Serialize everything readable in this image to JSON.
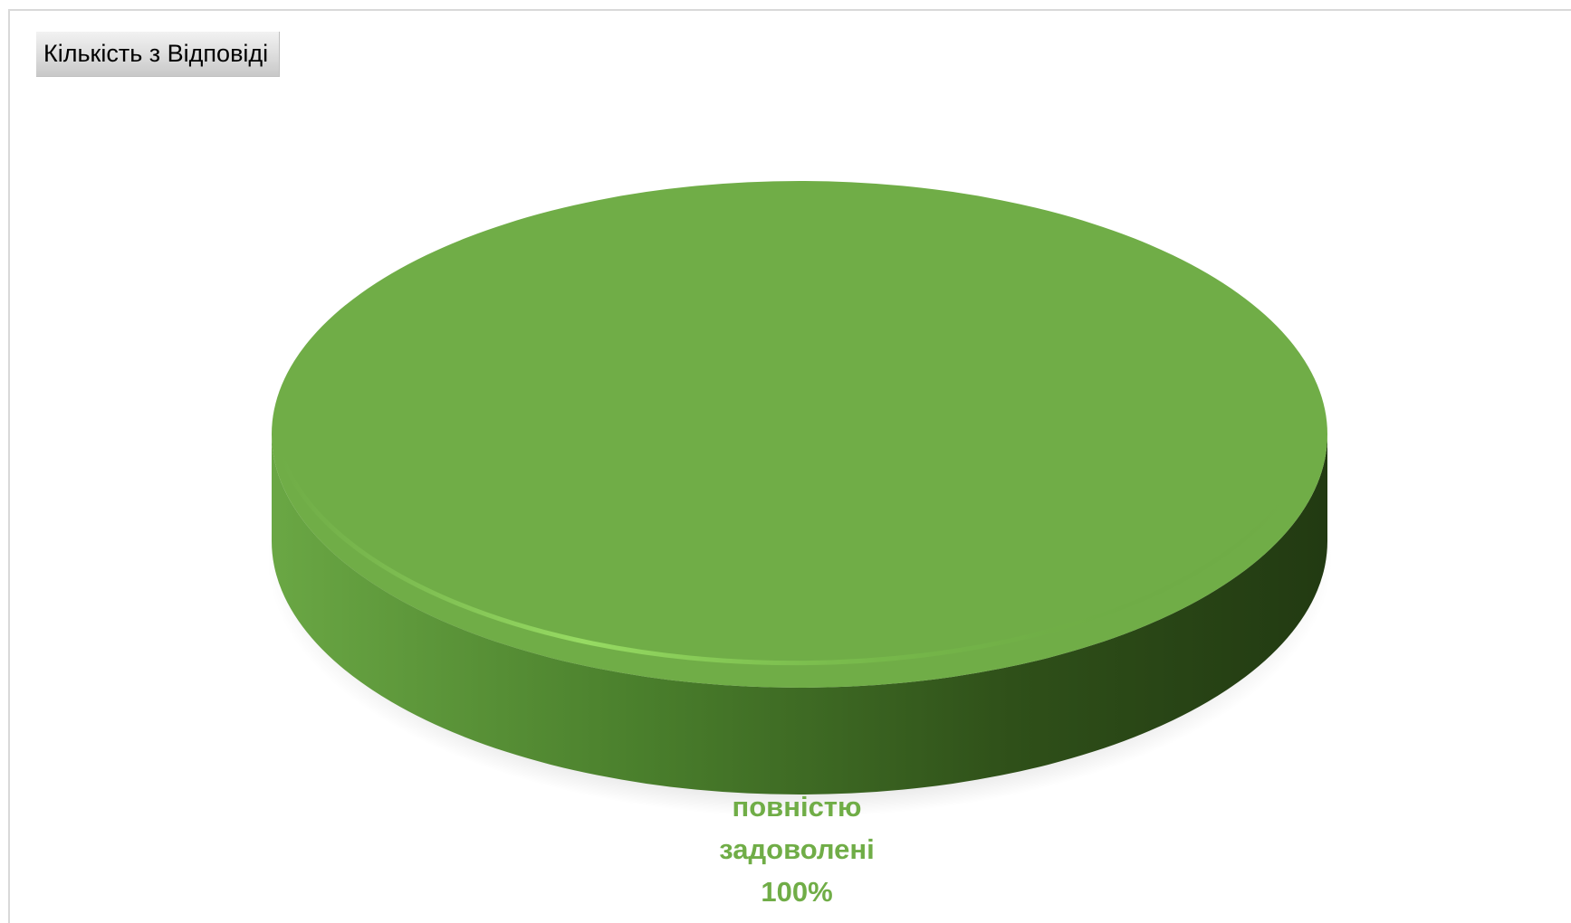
{
  "field_button": {
    "label": "Кількість з Відповіді"
  },
  "colors": {
    "slice": "#70ad47",
    "slice_side_light": "#5e9a38",
    "slice_side_dark": "#263f16",
    "label": "#70ad47"
  },
  "chart_data": {
    "type": "pie",
    "style": "3d",
    "categories": [
      "повністю задоволені"
    ],
    "values": [
      100
    ],
    "data_labels": [
      {
        "category_line1": "повністю",
        "category_line2": "задоволені",
        "percent": "100%"
      }
    ],
    "legend": "none"
  }
}
